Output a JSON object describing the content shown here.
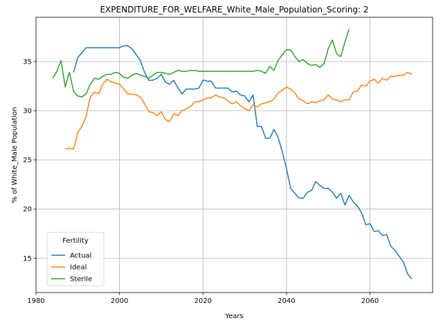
{
  "chart_data": {
    "type": "line",
    "title": "EXPENDITURE_FOR_WELFARE_White_Male_Population_Scoring: 2",
    "xlabel": "Years",
    "ylabel": "% of White_Male Population",
    "xlim": [
      1980,
      2075
    ],
    "ylim": [
      11.5,
      39.5
    ],
    "xticks": [
      1980,
      2000,
      2020,
      2040,
      2060
    ],
    "yticks": [
      15,
      20,
      25,
      30,
      35
    ],
    "grid": true,
    "legend": {
      "title": "Fertility",
      "position": "lower-left"
    },
    "series": [
      {
        "name": "Actual",
        "color": "#1f77b4",
        "points": [
          [
            1989,
            33.9
          ],
          [
            1990,
            35.4
          ],
          [
            1991,
            35.9
          ],
          [
            1992,
            36.4
          ],
          [
            1993,
            36.4
          ],
          [
            1994,
            36.4
          ],
          [
            1995,
            36.4
          ],
          [
            1996,
            36.4
          ],
          [
            1997,
            36.4
          ],
          [
            1998,
            36.4
          ],
          [
            1999,
            36.4
          ],
          [
            2000,
            36.4
          ],
          [
            2001,
            36.6
          ],
          [
            2002,
            36.6
          ],
          [
            2003,
            36.3
          ],
          [
            2004,
            35.7
          ],
          [
            2005,
            35.1
          ],
          [
            2006,
            33.9
          ],
          [
            2007,
            33.1
          ],
          [
            2008,
            33.1
          ],
          [
            2009,
            33.3
          ],
          [
            2010,
            33.7
          ],
          [
            2011,
            32.9
          ],
          [
            2012,
            32.7
          ],
          [
            2013,
            33.1
          ],
          [
            2014,
            32.3
          ],
          [
            2015,
            31.7
          ],
          [
            2016,
            32.2
          ],
          [
            2017,
            32.2
          ],
          [
            2018,
            32.2
          ],
          [
            2019,
            32.3
          ],
          [
            2020,
            33.1
          ],
          [
            2021,
            33.0
          ],
          [
            2022,
            33.0
          ],
          [
            2023,
            32.3
          ],
          [
            2024,
            32.3
          ],
          [
            2025,
            32.3
          ],
          [
            2026,
            32.3
          ],
          [
            2027,
            31.9
          ],
          [
            2028,
            32.0
          ],
          [
            2029,
            31.6
          ],
          [
            2030,
            31.5
          ],
          [
            2031,
            30.9
          ],
          [
            2032,
            31.6
          ],
          [
            2033,
            28.4
          ],
          [
            2034,
            28.4
          ],
          [
            2035,
            27.2
          ],
          [
            2036,
            27.2
          ],
          [
            2037,
            28.1
          ],
          [
            2038,
            27.3
          ],
          [
            2039,
            25.8
          ],
          [
            2040,
            24.1
          ],
          [
            2041,
            22.1
          ],
          [
            2042,
            21.6
          ],
          [
            2043,
            21.1
          ],
          [
            2044,
            21.1
          ],
          [
            2045,
            21.7
          ],
          [
            2046,
            21.9
          ],
          [
            2047,
            22.8
          ],
          [
            2048,
            22.4
          ],
          [
            2049,
            22.1
          ],
          [
            2050,
            22.1
          ],
          [
            2051,
            21.7
          ],
          [
            2052,
            21.1
          ],
          [
            2053,
            21.6
          ],
          [
            2054,
            20.4
          ],
          [
            2055,
            21.4
          ],
          [
            2056,
            20.7
          ],
          [
            2057,
            20.3
          ],
          [
            2058,
            19.6
          ],
          [
            2059,
            18.4
          ],
          [
            2060,
            18.5
          ],
          [
            2061,
            17.7
          ],
          [
            2062,
            17.8
          ],
          [
            2063,
            17.3
          ],
          [
            2064,
            17.4
          ],
          [
            2065,
            16.2
          ],
          [
            2066,
            15.8
          ],
          [
            2067,
            15.2
          ],
          [
            2068,
            14.6
          ],
          [
            2069,
            13.4
          ],
          [
            2070,
            12.9
          ]
        ]
      },
      {
        "name": "Ideal",
        "color": "#ff7f0e",
        "points": [
          [
            1987,
            26.1
          ],
          [
            1988,
            26.2
          ],
          [
            1989,
            26.1
          ],
          [
            1990,
            27.8
          ],
          [
            1991,
            28.4
          ],
          [
            1992,
            29.4
          ],
          [
            1993,
            31.4
          ],
          [
            1994,
            31.9
          ],
          [
            1995,
            31.7
          ],
          [
            1996,
            32.7
          ],
          [
            1997,
            33.2
          ],
          [
            1998,
            32.9
          ],
          [
            1999,
            32.8
          ],
          [
            2000,
            32.7
          ],
          [
            2001,
            32.2
          ],
          [
            2002,
            31.7
          ],
          [
            2003,
            31.7
          ],
          [
            2004,
            31.6
          ],
          [
            2005,
            31.4
          ],
          [
            2006,
            30.7
          ],
          [
            2007,
            29.9
          ],
          [
            2008,
            29.8
          ],
          [
            2009,
            29.5
          ],
          [
            2010,
            29.9
          ],
          [
            2011,
            29.1
          ],
          [
            2012,
            28.9
          ],
          [
            2013,
            29.7
          ],
          [
            2014,
            29.5
          ],
          [
            2015,
            30.0
          ],
          [
            2016,
            30.2
          ],
          [
            2017,
            30.4
          ],
          [
            2018,
            30.9
          ],
          [
            2019,
            30.9
          ],
          [
            2020,
            31.1
          ],
          [
            2021,
            31.3
          ],
          [
            2022,
            31.3
          ],
          [
            2023,
            31.6
          ],
          [
            2024,
            31.4
          ],
          [
            2025,
            31.3
          ],
          [
            2026,
            31.0
          ],
          [
            2027,
            30.7
          ],
          [
            2028,
            30.9
          ],
          [
            2029,
            30.5
          ],
          [
            2030,
            30.2
          ],
          [
            2031,
            30.0
          ],
          [
            2032,
            30.6
          ],
          [
            2033,
            30.4
          ],
          [
            2034,
            30.7
          ],
          [
            2035,
            30.8
          ],
          [
            2036,
            30.9
          ],
          [
            2037,
            31.2
          ],
          [
            2038,
            31.8
          ],
          [
            2039,
            32.1
          ],
          [
            2040,
            32.4
          ],
          [
            2041,
            32.2
          ],
          [
            2042,
            31.8
          ],
          [
            2043,
            31.2
          ],
          [
            2044,
            31.0
          ],
          [
            2045,
            30.7
          ],
          [
            2046,
            30.9
          ],
          [
            2047,
            30.8
          ],
          [
            2048,
            31.0
          ],
          [
            2049,
            31.1
          ],
          [
            2050,
            31.6
          ],
          [
            2051,
            31.2
          ],
          [
            2052,
            31.1
          ],
          [
            2053,
            30.9
          ],
          [
            2054,
            31.1
          ],
          [
            2055,
            31.1
          ],
          [
            2056,
            31.9
          ],
          [
            2057,
            32.0
          ],
          [
            2058,
            32.6
          ],
          [
            2059,
            32.5
          ],
          [
            2060,
            33.0
          ],
          [
            2061,
            33.2
          ],
          [
            2062,
            32.8
          ],
          [
            2063,
            33.3
          ],
          [
            2064,
            33.1
          ],
          [
            2065,
            33.5
          ],
          [
            2066,
            33.5
          ],
          [
            2067,
            33.6
          ],
          [
            2068,
            33.6
          ],
          [
            2069,
            33.9
          ],
          [
            2070,
            33.7
          ]
        ]
      },
      {
        "name": "Sterile",
        "color": "#2ca02c",
        "points": [
          [
            1984,
            33.3
          ],
          [
            1985,
            34.0
          ],
          [
            1986,
            35.1
          ],
          [
            1987,
            32.4
          ],
          [
            1988,
            33.9
          ],
          [
            1989,
            32.0
          ],
          [
            1990,
            31.5
          ],
          [
            1991,
            31.4
          ],
          [
            1992,
            31.7
          ],
          [
            1993,
            32.7
          ],
          [
            1994,
            33.3
          ],
          [
            1995,
            33.2
          ],
          [
            1996,
            33.5
          ],
          [
            1997,
            33.7
          ],
          [
            1998,
            33.7
          ],
          [
            1999,
            33.9
          ],
          [
            2000,
            33.8
          ],
          [
            2001,
            33.4
          ],
          [
            2002,
            33.3
          ],
          [
            2003,
            33.6
          ],
          [
            2004,
            33.8
          ],
          [
            2005,
            33.6
          ],
          [
            2006,
            33.5
          ],
          [
            2007,
            33.3
          ],
          [
            2008,
            33.6
          ],
          [
            2009,
            33.9
          ],
          [
            2010,
            33.9
          ],
          [
            2011,
            33.8
          ],
          [
            2012,
            33.7
          ],
          [
            2013,
            33.9
          ],
          [
            2014,
            34.1
          ],
          [
            2015,
            34.0
          ],
          [
            2016,
            34.0
          ],
          [
            2017,
            34.1
          ],
          [
            2018,
            34.1
          ],
          [
            2019,
            34.0
          ],
          [
            2020,
            34.0
          ],
          [
            2021,
            34.0
          ],
          [
            2022,
            34.0
          ],
          [
            2023,
            34.0
          ],
          [
            2024,
            34.0
          ],
          [
            2025,
            34.0
          ],
          [
            2026,
            34.0
          ],
          [
            2027,
            34.0
          ],
          [
            2028,
            34.0
          ],
          [
            2029,
            34.0
          ],
          [
            2030,
            34.0
          ],
          [
            2031,
            34.0
          ],
          [
            2032,
            34.0
          ],
          [
            2033,
            34.1
          ],
          [
            2034,
            34.0
          ],
          [
            2035,
            33.8
          ],
          [
            2036,
            34.5
          ],
          [
            2037,
            34.1
          ],
          [
            2038,
            35.1
          ],
          [
            2039,
            35.7
          ],
          [
            2040,
            36.2
          ],
          [
            2041,
            36.2
          ],
          [
            2042,
            35.5
          ],
          [
            2043,
            35.0
          ],
          [
            2044,
            35.2
          ],
          [
            2045,
            34.8
          ],
          [
            2046,
            34.6
          ],
          [
            2047,
            34.7
          ],
          [
            2048,
            34.4
          ],
          [
            2049,
            34.8
          ],
          [
            2050,
            36.3
          ],
          [
            2051,
            37.2
          ],
          [
            2052,
            35.8
          ],
          [
            2053,
            35.5
          ],
          [
            2054,
            37.0
          ],
          [
            2055,
            38.3
          ]
        ]
      }
    ]
  }
}
